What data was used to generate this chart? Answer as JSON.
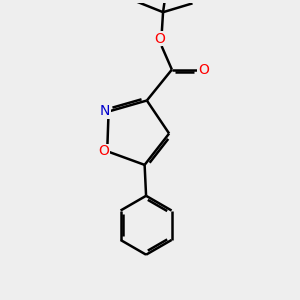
{
  "bg_color": "#eeeeee",
  "bond_color": "#000000",
  "oxygen_color": "#ff0000",
  "nitrogen_color": "#0000cc",
  "line_width": 1.8,
  "figsize": [
    3.0,
    3.0
  ],
  "dpi": 100,
  "xlim": [
    0,
    10
  ],
  "ylim": [
    0,
    10
  ]
}
